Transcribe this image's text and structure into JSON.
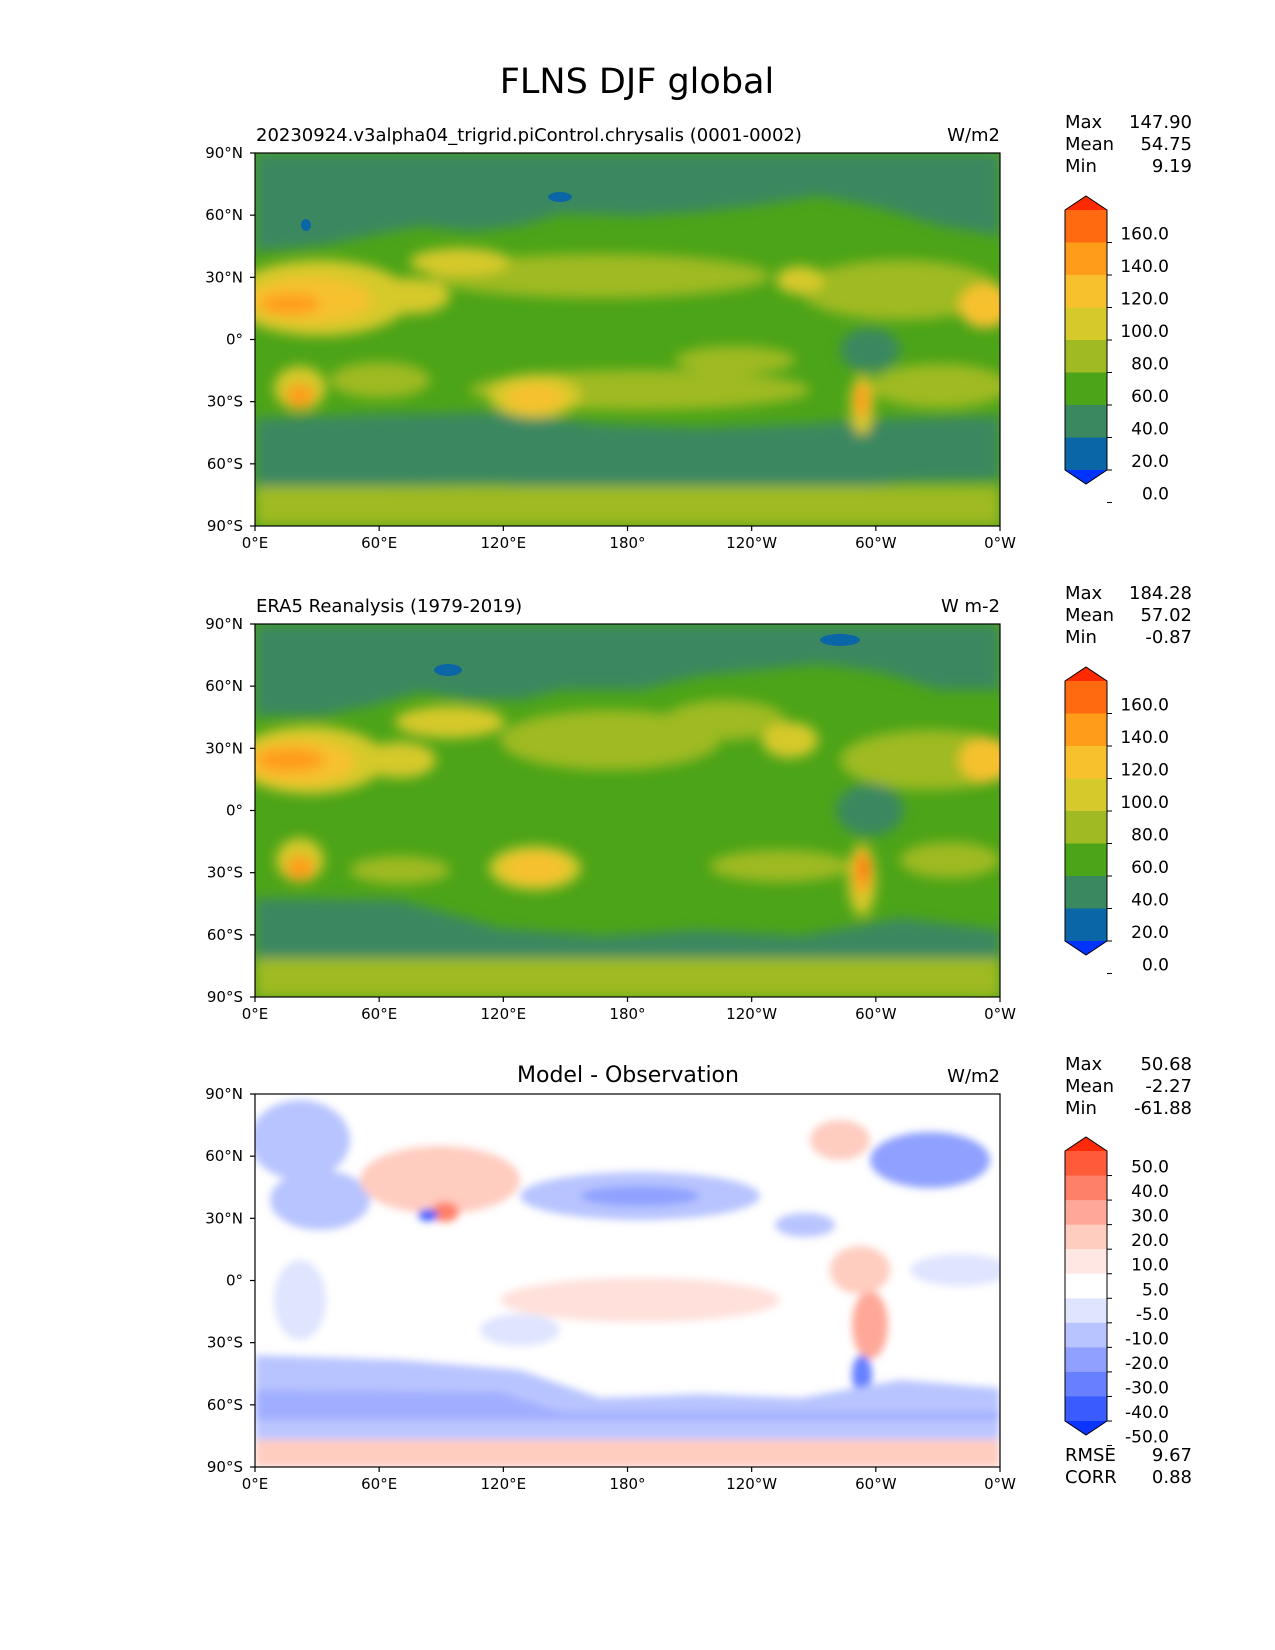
{
  "title": "FLNS DJF global",
  "panels": [
    {
      "id": "model",
      "left_title": "20230924.v3alpha04_trigrid.piControl.chrysalis (0001-0002)",
      "center_title": "",
      "units": "W/m2",
      "stats": [
        {
          "label": "Max",
          "value": "147.90"
        },
        {
          "label": "Mean",
          "value": "54.75"
        },
        {
          "label": "Min",
          "value": "9.19"
        }
      ],
      "colorbar_ticks": [
        "160.0",
        "140.0",
        "120.0",
        "100.0",
        "80.0",
        "60.0",
        "40.0",
        "20.0",
        "0.0"
      ],
      "colorbar_colors": [
        "#ff2a00",
        "#ff6a10",
        "#ff9c1a",
        "#f7c12e",
        "#d6c92c",
        "#9fba22",
        "#4ca418",
        "#3a8860",
        "#0a66a6",
        "#0033ff"
      ],
      "extra_stats": []
    },
    {
      "id": "obs",
      "left_title": "ERA5 Reanalysis (1979-2019)",
      "center_title": "",
      "units": "W m-2",
      "stats": [
        {
          "label": "Max",
          "value": "184.28"
        },
        {
          "label": "Mean",
          "value": "57.02"
        },
        {
          "label": "Min",
          "value": "-0.87"
        }
      ],
      "colorbar_ticks": [
        "160.0",
        "140.0",
        "120.0",
        "100.0",
        "80.0",
        "60.0",
        "40.0",
        "20.0",
        "0.0"
      ],
      "colorbar_colors": [
        "#ff2a00",
        "#ff6a10",
        "#ff9c1a",
        "#f7c12e",
        "#d6c92c",
        "#9fba22",
        "#4ca418",
        "#3a8860",
        "#0a66a6",
        "#0033ff"
      ],
      "extra_stats": []
    },
    {
      "id": "diff",
      "left_title": "",
      "center_title": "Model - Observation",
      "units": "W/m2",
      "stats": [
        {
          "label": "Max",
          "value": "50.68"
        },
        {
          "label": "Mean",
          "value": "-2.27"
        },
        {
          "label": "Min",
          "value": "-61.88"
        }
      ],
      "colorbar_ticks": [
        "50.0",
        "40.0",
        "30.0",
        "20.0",
        "10.0",
        "5.0",
        "-5.0",
        "-10.0",
        "-20.0",
        "-30.0",
        "-40.0",
        "-50.0"
      ],
      "colorbar_colors": [
        "#ff2a0a",
        "#ff5a3a",
        "#ff8068",
        "#ffa898",
        "#ffccc0",
        "#ffe8e4",
        "#ffffff",
        "#dfe4ff",
        "#b8c4ff",
        "#8fa0ff",
        "#6680ff",
        "#3a5cff",
        "#0a34ff"
      ],
      "extra_stats": [
        {
          "label": "RMSE",
          "value": "9.67"
        },
        {
          "label": "CORR",
          "value": "0.88"
        }
      ]
    }
  ],
  "axes": {
    "x_ticks": [
      "0°E",
      "60°E",
      "120°E",
      "180°",
      "120°W",
      "60°W",
      "0°W"
    ],
    "y_ticks": [
      "90°N",
      "60°N",
      "30°N",
      "0°",
      "30°S",
      "60°S",
      "90°S"
    ]
  }
}
